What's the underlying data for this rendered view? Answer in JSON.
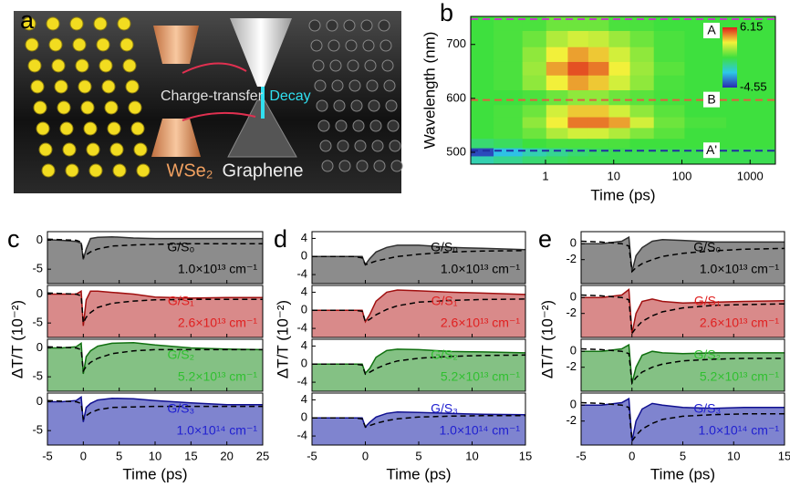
{
  "illustration": {
    "label": "a",
    "charge_transfer": "Charge-transfer",
    "decay": "Decay",
    "material_left": "WSe₂",
    "material_right": "Graphene"
  },
  "chart_data": [
    {
      "type": "heatmap",
      "label": "b",
      "xlabel": "Time (ps)",
      "ylabel": "Wavelength (nm)",
      "xscale": "log",
      "x": [
        0.1,
        0.3,
        0.7,
        1.5,
        3,
        6,
        12,
        25,
        60,
        200,
        1000
      ],
      "y": [
        740,
        710,
        680,
        655,
        630,
        600,
        575,
        555,
        535,
        515,
        500,
        485
      ],
      "z": [
        [
          0.8,
          1,
          1,
          1.5,
          1.5,
          1.5,
          1,
          1,
          0.8,
          0.8,
          0.8
        ],
        [
          0.8,
          1,
          1.5,
          2.5,
          3,
          2.8,
          2.2,
          1.5,
          1,
          0.8,
          0.8
        ],
        [
          0.8,
          1,
          2,
          3.5,
          4.5,
          4,
          3,
          2,
          1,
          0.8,
          0.8
        ],
        [
          0.8,
          1,
          2.2,
          4.5,
          5.5,
          5,
          3.5,
          2.2,
          1.2,
          0.8,
          0.8
        ],
        [
          0.8,
          1,
          2,
          3.5,
          4.5,
          4,
          3,
          2,
          1,
          0.8,
          0.8
        ],
        [
          0.8,
          0.8,
          1,
          1.5,
          2,
          2,
          1.5,
          1.2,
          0.9,
          0.8,
          0.8
        ],
        [
          0.8,
          1,
          1.5,
          3,
          4,
          4,
          3,
          2,
          1.2,
          0.8,
          0.8
        ],
        [
          0.8,
          1,
          2,
          3.5,
          5,
          5,
          4.5,
          3,
          1.5,
          1,
          0.8
        ],
        [
          0.8,
          1,
          1.5,
          2.5,
          3,
          3,
          2.5,
          1.8,
          1.2,
          0.8,
          0.8
        ],
        [
          0,
          0.3,
          0.8,
          1,
          1,
          1,
          1,
          0.8,
          0.8,
          0.8,
          0.8
        ],
        [
          -4,
          -2,
          -1,
          -0.5,
          0,
          0.3,
          0.5,
          0.5,
          0.5,
          0.5,
          0.5
        ],
        [
          -1,
          -0.5,
          0,
          0.3,
          0.5,
          0.5,
          0.5,
          0.5,
          0.5,
          0.5,
          0.5
        ]
      ],
      "xlim": [
        0.08,
        2350
      ],
      "ylim": [
        478,
        752
      ],
      "xticks": [
        1,
        10,
        100,
        1000
      ],
      "yticks": [
        500,
        600,
        700
      ],
      "colormap": [
        "#2a2ab0",
        "#2ec8e8",
        "#3ee03e",
        "#f2f23a",
        "#e01c1c"
      ],
      "clim": [
        -4.55,
        6.15
      ],
      "cticks": [
        6.15,
        -4.55
      ],
      "markers": [
        {
          "label": "A",
          "value": 747,
          "color": "#c040c0"
        },
        {
          "label": "B",
          "value": 597,
          "color": "#e06040"
        },
        {
          "label": "A'",
          "value": 503,
          "color": "#2030a0"
        }
      ]
    },
    {
      "type": "area",
      "label": "c",
      "xlabel": "Time (ps)",
      "ylabel": "ΔT/T (10⁻²)",
      "x": [
        -5,
        -3,
        -1,
        -0.3,
        0,
        0.4,
        1,
        2,
        4,
        7,
        10,
        15,
        20,
        25
      ],
      "xlim": [
        -5,
        25
      ],
      "xticks": [
        -5,
        0,
        5,
        10,
        15,
        20,
        25
      ],
      "ylim": [
        -7.5,
        1.5
      ],
      "yticks": [
        -5,
        0
      ],
      "subplots": [
        {
          "name": "G/S₀",
          "density": "1.0×10¹³ cm⁻¹",
          "color": "#8c8c8c",
          "line_color": "#303030",
          "text_color": "#000000",
          "values": [
            0.1,
            0,
            -0.2,
            -0.5,
            -3.3,
            -1.5,
            0.3,
            0.5,
            0.6,
            0.4,
            0.3,
            0.3,
            0.3,
            0.3
          ],
          "fit": [
            0.2,
            0.1,
            0,
            -0.3,
            -3,
            -2.5,
            -2,
            -1.5,
            -1,
            -0.8,
            -0.7,
            -0.6,
            -0.6,
            -0.6
          ]
        },
        {
          "name": "G/S₁",
          "density": "2.6×10¹³ cm⁻¹",
          "color": "#d98a8a",
          "line_color": "#a01010",
          "text_color": "#e02020",
          "values": [
            0,
            0,
            0,
            0.5,
            -5.5,
            -1,
            0.5,
            0.5,
            0.3,
            0,
            -0.5,
            -0.7,
            -0.6,
            -0.6
          ],
          "fit": [
            0.2,
            0.1,
            0,
            -0.3,
            -5,
            -4,
            -3.2,
            -2.3,
            -1.6,
            -1.2,
            -1,
            -0.9,
            -0.9,
            -0.9
          ]
        },
        {
          "name": "G/S₂",
          "density": "5.2×10¹³ cm⁻¹",
          "color": "#84c184",
          "line_color": "#107010",
          "text_color": "#30c030",
          "values": [
            0,
            0,
            0.2,
            0.8,
            -4.5,
            -1.5,
            -0.5,
            0.3,
            0.8,
            0.9,
            0.5,
            0,
            -0.2,
            -0.3
          ],
          "fit": [
            0.2,
            0.1,
            0,
            -0.3,
            -4,
            -3.2,
            -2.5,
            -1.8,
            -1,
            -0.5,
            -0.3,
            -0.3,
            -0.3,
            -0.3
          ]
        },
        {
          "name": "G/S₃",
          "density": "1.0×10¹⁴ cm⁻¹",
          "color": "#7f84cf",
          "line_color": "#101090",
          "text_color": "#2020d0",
          "values": [
            0,
            0,
            0.2,
            0.8,
            -3.5,
            -1,
            -0.3,
            0.3,
            0.6,
            0.5,
            0.2,
            -0.2,
            -0.5,
            -0.5
          ],
          "fit": [
            0.2,
            0.1,
            0,
            -0.3,
            -3,
            -2.4,
            -1.9,
            -1.4,
            -1,
            -0.9,
            -0.8,
            -0.8,
            -0.8,
            -0.8
          ]
        }
      ]
    },
    {
      "type": "area",
      "label": "d",
      "xlabel": "Time (ps)",
      "ylabel": "ΔT/T (10⁻²)",
      "x": [
        -5,
        -3,
        -1,
        -0.3,
        0,
        0.4,
        1,
        2,
        3,
        5,
        8,
        11,
        15
      ],
      "xlim": [
        -5,
        15
      ],
      "xticks": [
        -5,
        0,
        5,
        10,
        15
      ],
      "ylim": [
        -6,
        5.5
      ],
      "yticks": [
        -4,
        0,
        4
      ],
      "subplots": [
        {
          "name": "G/S₀",
          "density": "1.0×10¹³ cm⁻¹",
          "color": "#8c8c8c",
          "line_color": "#303030",
          "text_color": "#000000",
          "values": [
            0,
            0,
            0,
            0,
            -1.8,
            -0.5,
            1,
            2,
            2.5,
            2.5,
            2,
            1.8,
            1.5
          ],
          "fit": [
            0,
            0,
            0,
            -0.3,
            -1.8,
            -1.5,
            -1,
            -0.5,
            0,
            0.5,
            1,
            1.2,
            1.3
          ]
        },
        {
          "name": "G/S₁",
          "density": "2.6×10¹³ cm⁻¹",
          "color": "#d98a8a",
          "line_color": "#a01010",
          "text_color": "#e02020",
          "values": [
            0,
            0,
            0,
            0,
            -2.5,
            -1,
            2,
            4,
            4.5,
            4.3,
            4,
            3.8,
            3.5
          ],
          "fit": [
            0,
            0,
            0,
            -0.2,
            -2.5,
            -2,
            -1,
            0.2,
            1,
            1.8,
            2.2,
            2.4,
            2.5
          ]
        },
        {
          "name": "G/S₂",
          "density": "5.2×10¹³ cm⁻¹",
          "color": "#84c184",
          "line_color": "#107010",
          "text_color": "#30c030",
          "values": [
            0,
            0,
            0,
            0,
            -2,
            -1,
            1.5,
            3,
            3.3,
            3.2,
            2.8,
            2.7,
            2.5
          ],
          "fit": [
            0,
            0,
            0,
            -0.2,
            -2.2,
            -1.8,
            -1,
            0,
            0.7,
            1.3,
            1.7,
            1.9,
            2
          ]
        },
        {
          "name": "G/S₃",
          "density": "1.0×10¹⁴ cm⁻¹",
          "color": "#7f84cf",
          "line_color": "#101090",
          "text_color": "#2020d0",
          "values": [
            0,
            0,
            0,
            0,
            -2,
            -1,
            0.2,
            1,
            1.3,
            1.2,
            1,
            0.8,
            0.7
          ],
          "fit": [
            0,
            0,
            0,
            -0.2,
            -2,
            -1.7,
            -1.2,
            -0.6,
            -0.2,
            0.2,
            0.4,
            0.5,
            0.5
          ]
        }
      ]
    },
    {
      "type": "area",
      "label": "e",
      "xlabel": "Time (ps)",
      "ylabel": "ΔT/T (10⁻²)",
      "x": [
        -5,
        -3,
        -1,
        -0.3,
        0,
        0.4,
        1,
        2,
        3,
        5,
        8,
        11,
        15
      ],
      "xlim": [
        -5,
        15
      ],
      "xticks": [
        -5,
        0,
        5,
        10,
        15
      ],
      "ylim": [
        -5,
        1.5
      ],
      "yticks": [
        -2,
        0
      ],
      "subplots": [
        {
          "name": "G/S₀",
          "density": "1.0×10¹³ cm⁻¹",
          "color": "#8c8c8c",
          "line_color": "#303030",
          "text_color": "#000000",
          "values": [
            0,
            0,
            0.3,
            0.8,
            -3.5,
            -1.5,
            -0.5,
            0.3,
            0.5,
            0.4,
            0.2,
            0.2,
            0.2
          ],
          "fit": [
            0.3,
            0.2,
            0,
            -0.3,
            -3.5,
            -3,
            -2.5,
            -2,
            -1.6,
            -1.2,
            -0.9,
            -0.7,
            -0.6
          ]
        },
        {
          "name": "G/S₁",
          "density": "2.6×10¹³ cm⁻¹",
          "color": "#d98a8a",
          "line_color": "#a01010",
          "text_color": "#e02020",
          "values": [
            0,
            0,
            0.3,
            1,
            -4.5,
            -2,
            -0.5,
            -0.2,
            -0.5,
            -0.7,
            -0.6,
            -0.5,
            -0.4
          ],
          "fit": [
            0.3,
            0.2,
            0,
            -0.3,
            -4.5,
            -3.8,
            -3,
            -2.3,
            -1.8,
            -1.3,
            -1,
            -0.9,
            -0.8
          ]
        },
        {
          "name": "G/S₂",
          "density": "5.2×10¹³ cm⁻¹",
          "color": "#84c184",
          "line_color": "#107010",
          "text_color": "#30c030",
          "values": [
            0,
            0,
            0.3,
            0.8,
            -4,
            -2,
            -0.5,
            0,
            -0.2,
            -0.3,
            -0.2,
            -0.2,
            -0.2
          ],
          "fit": [
            0.3,
            0.2,
            0,
            -0.3,
            -4,
            -3.3,
            -2.6,
            -2,
            -1.6,
            -1.2,
            -1,
            -0.9,
            -0.9
          ]
        },
        {
          "name": "G/S₃",
          "density": "1.0×10¹⁴ cm⁻¹",
          "color": "#7f84cf",
          "line_color": "#101090",
          "text_color": "#2020d0",
          "values": [
            0,
            0,
            0.3,
            0.8,
            -4.5,
            -2,
            -0.5,
            0.2,
            0,
            -0.3,
            -0.4,
            -0.3,
            -0.3
          ],
          "fit": [
            0.3,
            0.2,
            0,
            -0.3,
            -4.5,
            -3.8,
            -3,
            -2.3,
            -1.8,
            -1.4,
            -1.2,
            -1.1,
            -1.1
          ]
        }
      ]
    }
  ]
}
